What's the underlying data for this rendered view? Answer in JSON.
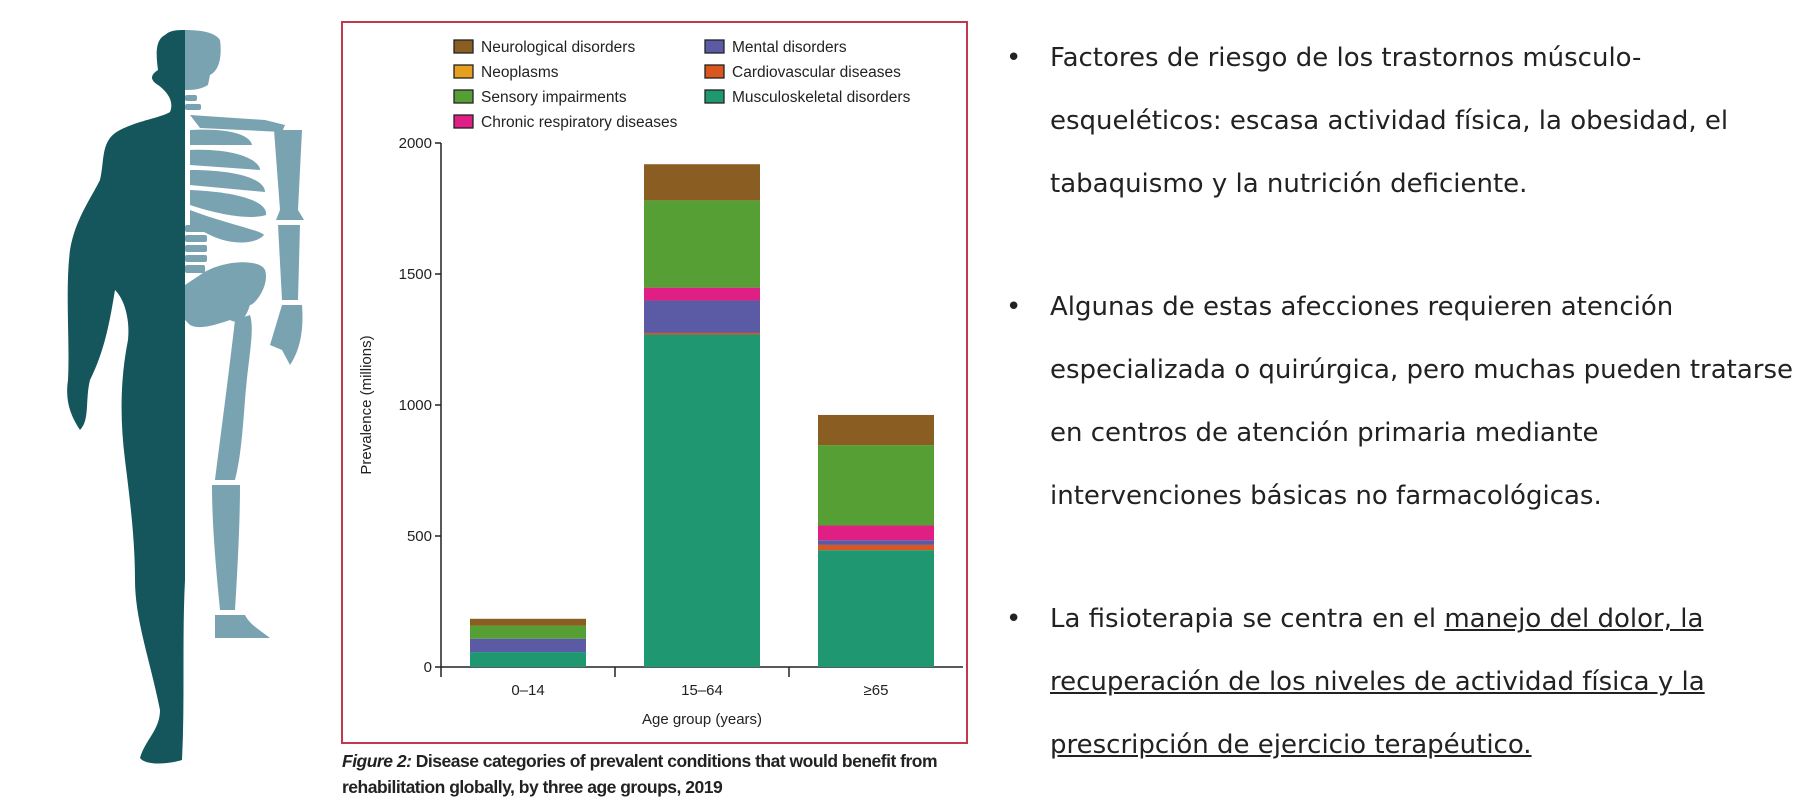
{
  "chart_data": {
    "type": "bar",
    "stacked": true,
    "title": "",
    "xlabel": "Age group (years)",
    "ylabel": "Prevalence (millions)",
    "ylim": [
      0,
      2000
    ],
    "yticks": [
      "0",
      "500",
      "1000",
      "1500",
      "2000"
    ],
    "ytick_values": [
      0,
      500,
      1000,
      1500,
      2000
    ],
    "categories": [
      "0–14",
      "15–64",
      "≥65"
    ],
    "legend_position": "top",
    "series": [
      {
        "name": "Musculoskeletal disorders",
        "color": "#1f9770",
        "values": [
          57,
          1269,
          446
        ]
      },
      {
        "name": "Cardiovascular diseases",
        "color": "#d9561f",
        "values": [
          0,
          6,
          20
        ]
      },
      {
        "name": "Neoplasms",
        "color": "#e6a020",
        "values": [
          0,
          0,
          0
        ]
      },
      {
        "name": "Mental disorders",
        "color": "#5b5ba5",
        "values": [
          51,
          124,
          18
        ]
      },
      {
        "name": "Chronic respiratory diseases",
        "color": "#e01f84",
        "values": [
          0,
          49,
          56
        ]
      },
      {
        "name": "Sensory impairments",
        "color": "#559f35",
        "values": [
          50,
          333,
          307
        ]
      },
      {
        "name": "Neurological disorders",
        "color": "#8a5d22",
        "values": [
          26,
          138,
          115
        ]
      }
    ],
    "legend_order": [
      "Neurological disorders",
      "Mental disorders",
      "Neoplasms",
      "Cardiovascular diseases",
      "Sensory impairments",
      "Musculoskeletal disorders",
      "Chronic respiratory diseases"
    ]
  },
  "caption": {
    "label": "Figure 2:",
    "text": " Disease categories of prevalent conditions that would benefit from rehabilitation globally, by three age groups, 2019"
  },
  "bullets": [
    {
      "text": "Factores de riesgo de los trastornos músculo-esqueléticos: escasa actividad física, la obesidad, el tabaquismo y la nutrición deficiente.",
      "underlined": ""
    },
    {
      "text": "Algunas de estas afecciones requieren atención especializada o quirúrgica, pero muchas pueden tratarse en centros de atención primaria mediante intervenciones básicas no farmacológicas.",
      "underlined": ""
    },
    {
      "text": "La fisioterapia se centra en el ",
      "underlined": "manejo del dolor, la recuperación de los niveles de actividad física y la prescripción de ejercicio terapéutico."
    }
  ],
  "bullet_symbol": "•",
  "colors": {
    "body": "#14565c",
    "skeleton": "#7aa3b2",
    "frame": "#c0394f"
  }
}
